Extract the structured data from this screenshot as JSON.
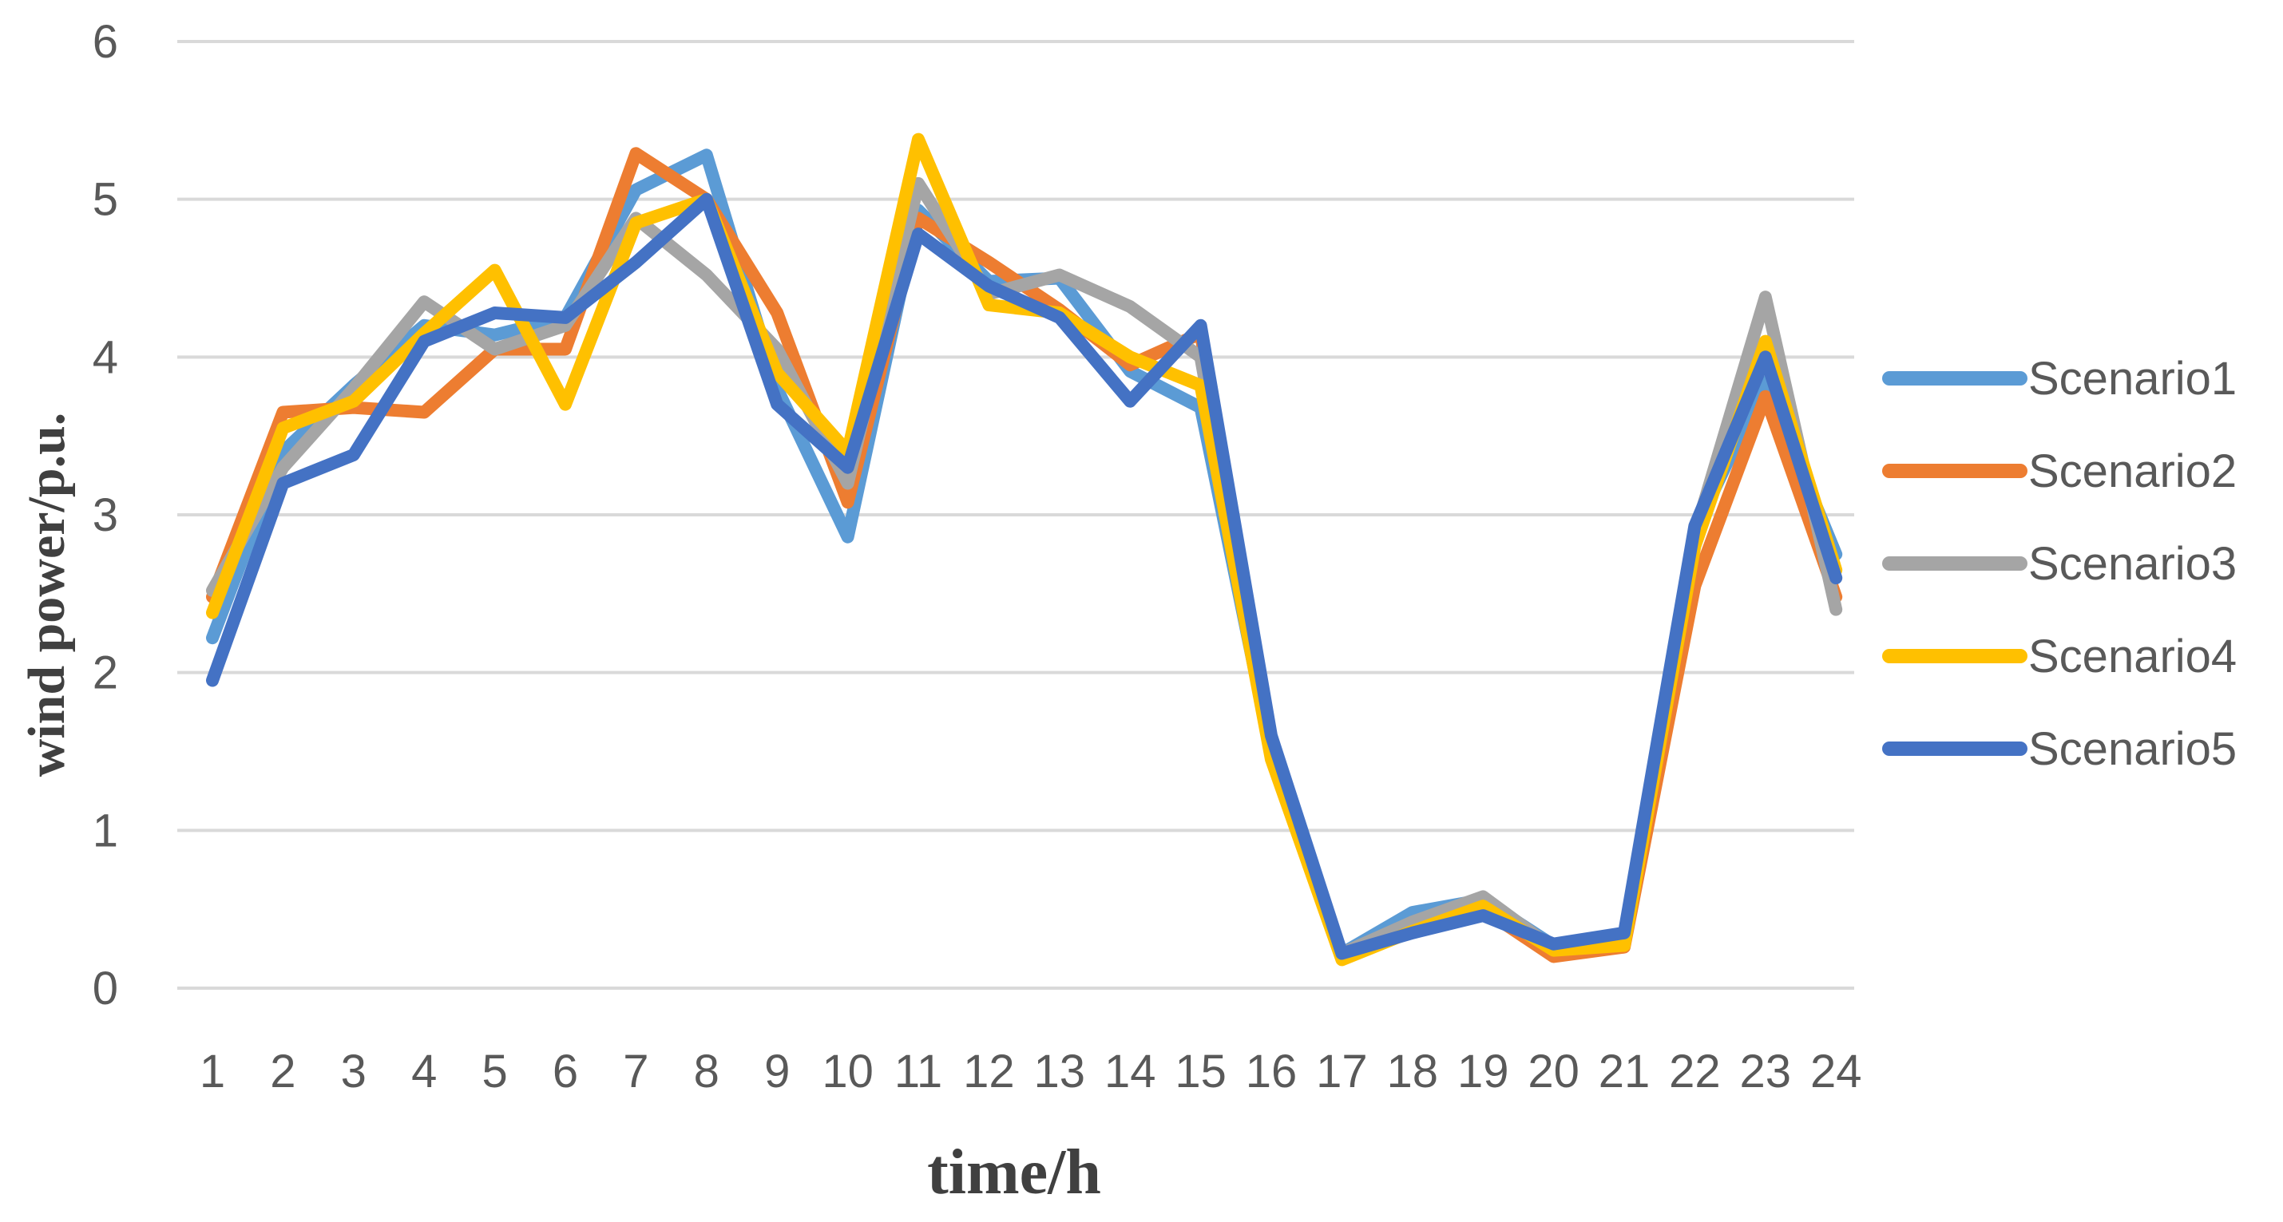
{
  "chart_data": {
    "type": "line",
    "title": "",
    "xlabel": "time/h",
    "ylabel": "wind power/p.u.",
    "x": [
      "1",
      "2",
      "3",
      "4",
      "5",
      "6",
      "7",
      "8",
      "9",
      "10",
      "11",
      "12",
      "13",
      "14",
      "15",
      "16",
      "17",
      "18",
      "19",
      "20",
      "21",
      "22",
      "23",
      "24"
    ],
    "ylim": [
      0,
      6
    ],
    "yticks": [
      "0",
      "1",
      "2",
      "3",
      "4",
      "5",
      "6"
    ],
    "grid": true,
    "legend_position": "right",
    "series": [
      {
        "name": "Scenario1",
        "color": "#5B9BD5",
        "values": [
          2.22,
          3.4,
          3.82,
          4.2,
          4.14,
          4.25,
          5.06,
          5.28,
          3.8,
          2.86,
          4.93,
          4.48,
          4.5,
          3.91,
          3.68,
          1.5,
          0.22,
          0.48,
          0.56,
          0.27,
          0.32,
          2.9,
          3.84,
          2.75
        ]
      },
      {
        "name": "Scenario2",
        "color": "#ED7D31",
        "values": [
          2.48,
          3.65,
          3.68,
          3.65,
          4.05,
          4.05,
          5.29,
          5.0,
          4.28,
          3.08,
          4.88,
          4.6,
          4.3,
          3.95,
          4.15,
          1.5,
          0.2,
          0.38,
          0.5,
          0.2,
          0.26,
          2.55,
          3.75,
          2.48
        ]
      },
      {
        "name": "Scenario3",
        "color": "#A5A5A5",
        "values": [
          2.52,
          3.3,
          3.8,
          4.35,
          4.05,
          4.2,
          4.88,
          4.52,
          4.05,
          3.2,
          5.1,
          4.4,
          4.52,
          4.32,
          4.0,
          1.5,
          0.22,
          0.42,
          0.58,
          0.25,
          0.3,
          2.88,
          4.38,
          2.4
        ]
      },
      {
        "name": "Scenario4",
        "color": "#FFC000",
        "values": [
          2.38,
          3.55,
          3.72,
          4.15,
          4.55,
          3.7,
          4.85,
          5.0,
          3.9,
          3.4,
          5.38,
          4.33,
          4.28,
          4.0,
          3.82,
          1.45,
          0.18,
          0.36,
          0.52,
          0.24,
          0.27,
          2.8,
          4.1,
          2.65
        ]
      },
      {
        "name": "Scenario5",
        "color": "#4472C4",
        "values": [
          1.95,
          3.2,
          3.38,
          4.1,
          4.28,
          4.25,
          4.6,
          5.0,
          3.7,
          3.3,
          4.78,
          4.45,
          4.25,
          3.72,
          4.2,
          1.6,
          0.22,
          0.35,
          0.46,
          0.28,
          0.35,
          2.93,
          4.0,
          2.6
        ]
      }
    ]
  }
}
